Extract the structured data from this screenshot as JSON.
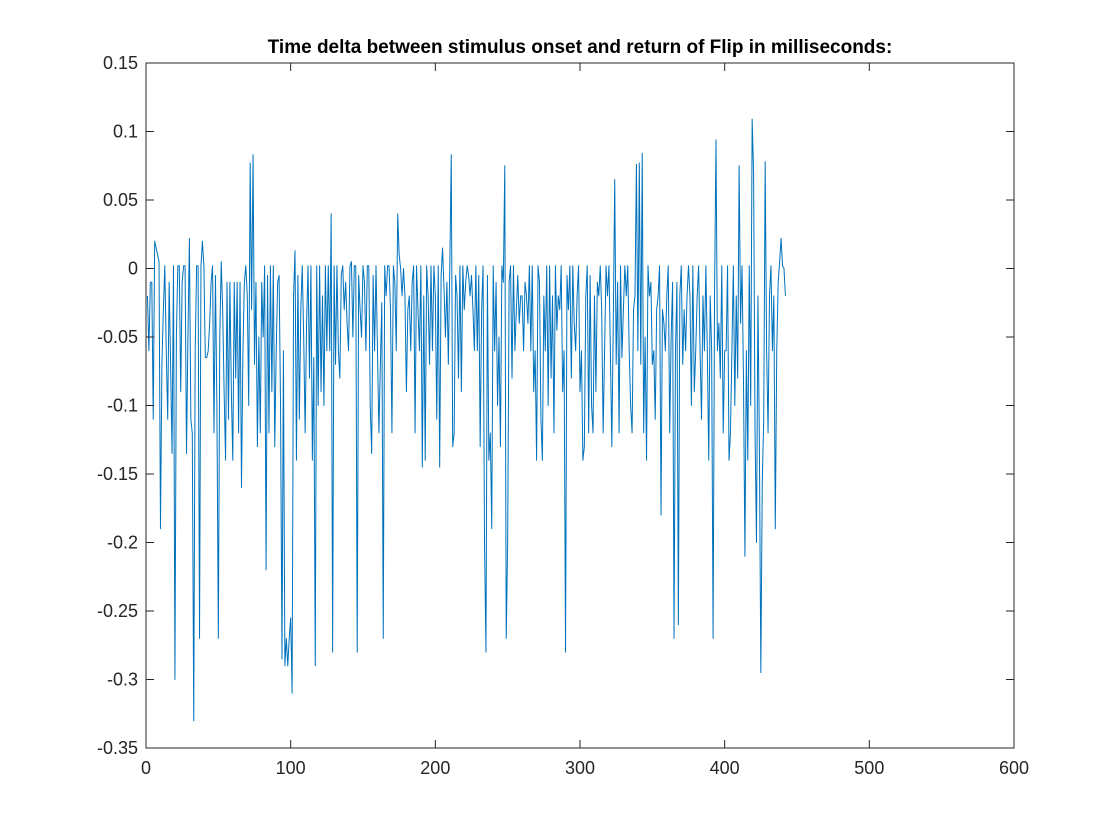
{
  "chart_data": {
    "type": "line",
    "title": "Time delta between stimulus onset and return of Flip in milliseconds:",
    "xlabel": "",
    "ylabel": "",
    "xlim": [
      0,
      600
    ],
    "ylim": [
      -0.35,
      0.15
    ],
    "xticks": [
      0,
      100,
      200,
      300,
      400,
      500,
      600
    ],
    "xtick_labels": [
      "0",
      "100",
      "200",
      "300",
      "400",
      "500",
      "600"
    ],
    "yticks": [
      -0.35,
      -0.3,
      -0.25,
      -0.2,
      -0.15,
      -0.1,
      -0.05,
      0,
      0.05,
      0.1,
      0.15
    ],
    "ytick_labels": [
      "-0.35",
      "-0.3",
      "-0.25",
      "-0.2",
      "-0.15",
      "-0.1",
      "-0.05",
      "0",
      "0.05",
      "0.1",
      "0.15"
    ],
    "grid": false,
    "legend": "none",
    "series": [
      {
        "color": "#0072BD",
        "x_start": 1,
        "x_step": 1,
        "values": [
          -0.02,
          -0.06,
          -0.01,
          -0.01,
          -0.11,
          0.02,
          0.015,
          0.01,
          0.005,
          -0.19,
          -0.07,
          -0.03,
          0.002,
          -0.06,
          -0.11,
          -0.01,
          -0.07,
          -0.135,
          0.002,
          -0.3,
          -0.05,
          0.002,
          0.002,
          -0.09,
          -0.01,
          0.002,
          0.002,
          -0.135,
          -0.05,
          0.022,
          -0.11,
          -0.12,
          -0.33,
          -0.06,
          0.002,
          0.002,
          -0.27,
          0.002,
          0.02,
          0.002,
          -0.065,
          -0.065,
          -0.06,
          -0.04,
          -0.01,
          0.002,
          -0.12,
          -0.005,
          -0.1,
          -0.27,
          -0.05,
          0.005,
          -0.03,
          -0.09,
          -0.14,
          -0.01,
          -0.11,
          -0.01,
          -0.09,
          -0.14,
          -0.01,
          -0.08,
          -0.01,
          -0.12,
          -0.01,
          -0.16,
          -0.06,
          -0.01,
          0.002,
          -0.02,
          -0.1,
          0.077,
          -0.03,
          0.083,
          -0.07,
          -0.01,
          -0.13,
          -0.05,
          -0.12,
          -0.01,
          -0.05,
          0.002,
          -0.22,
          -0.005,
          -0.12,
          0.002,
          -0.09,
          0.002,
          -0.13,
          -0.06,
          -0.01,
          -0.005,
          -0.1,
          -0.285,
          -0.06,
          -0.29,
          -0.27,
          -0.29,
          -0.27,
          -0.255,
          -0.31,
          -0.02,
          0.013,
          -0.14,
          -0.005,
          -0.11,
          -0.03,
          0.002,
          -0.05,
          -0.12,
          -0.04,
          0.002,
          -0.08,
          0.002,
          -0.14,
          -0.065,
          -0.29,
          0.002,
          -0.1,
          0.002,
          -0.09,
          -0.02,
          -0.1,
          0.002,
          -0.06,
          0.002,
          -0.06,
          0.04,
          -0.28,
          0.002,
          -0.07,
          0.002,
          -0.06,
          -0.08,
          -0.005,
          0.002,
          -0.03,
          -0.01,
          -0.04,
          -0.06,
          0.002,
          0.005,
          -0.05,
          0.002,
          0.002,
          -0.28,
          -0.005,
          -0.03,
          -0.05,
          0.002,
          -0.01,
          -0.06,
          0.002,
          0.002,
          -0.1,
          -0.135,
          -0.005,
          -0.06,
          0.002,
          -0.06,
          -0.12,
          -0.07,
          -0.025,
          -0.27,
          0.002,
          -0.02,
          0.002,
          0.002,
          -0.03,
          -0.12,
          0.002,
          -0.01,
          -0.06,
          0.04,
          0.01,
          0.0,
          -0.02,
          0.0,
          -0.02,
          -0.09,
          -0.03,
          -0.02,
          -0.06,
          -0.01,
          0.002,
          -0.12,
          0.002,
          -0.03,
          -0.06,
          0.002,
          -0.145,
          -0.02,
          -0.14,
          0.002,
          -0.02,
          -0.07,
          0.002,
          -0.06,
          0.002,
          -0.02,
          -0.11,
          0.002,
          -0.145,
          -0.005,
          0.015,
          -0.015,
          -0.05,
          -0.01,
          -0.07,
          0.002,
          0.083,
          -0.13,
          -0.12,
          -0.005,
          -0.02,
          -0.08,
          0.002,
          -0.09,
          0.002,
          -0.03,
          -0.01,
          0.002,
          -0.005,
          -0.02,
          -0.005,
          -0.03,
          -0.06,
          0.002,
          -0.06,
          -0.005,
          -0.13,
          -0.03,
          0.002,
          -0.2,
          -0.28,
          -0.005,
          -0.14,
          -0.12,
          -0.19,
          0.002,
          -0.06,
          -0.01,
          -0.1,
          -0.05,
          -0.13,
          0.002,
          -0.01,
          0.075,
          -0.27,
          -0.2,
          -0.01,
          0.002,
          -0.08,
          0.002,
          -0.06,
          -0.03,
          -0.005,
          -0.04,
          -0.02,
          -0.02,
          -0.06,
          -0.01,
          -0.02,
          -0.04,
          0.002,
          -0.06,
          0.002,
          -0.09,
          -0.06,
          -0.14,
          0.002,
          -0.01,
          -0.11,
          -0.14,
          -0.02,
          -0.06,
          0.002,
          -0.1,
          0.002,
          -0.08,
          -0.02,
          -0.12,
          0.002,
          -0.045,
          -0.02,
          -0.03,
          0.002,
          -0.09,
          -0.06,
          -0.28,
          -0.005,
          -0.03,
          0.002,
          -0.08,
          0.002,
          -0.04,
          -0.06,
          -0.02,
          0.002,
          -0.09,
          -0.06,
          -0.14,
          -0.13,
          -0.02,
          0.002,
          -0.12,
          -0.005,
          -0.1,
          -0.12,
          -0.02,
          -0.09,
          -0.01,
          -0.02,
          0.002,
          -0.03,
          -0.12,
          -0.06,
          0.002,
          -0.02,
          0.002,
          -0.06,
          -0.13,
          -0.04,
          0.065,
          -0.07,
          -0.01,
          -0.12,
          0.002,
          -0.065,
          -0.03,
          0.002,
          -0.02,
          0.002,
          -0.06,
          -0.1,
          -0.12,
          -0.03,
          -0.02,
          0.076,
          -0.06,
          0.077,
          -0.07,
          0.084,
          -0.12,
          -0.05,
          -0.14,
          0.002,
          -0.02,
          -0.01,
          -0.07,
          -0.06,
          -0.11,
          -0.03,
          -0.02,
          0.002,
          -0.18,
          -0.03,
          -0.04,
          -0.06,
          -0.02,
          0.002,
          -0.12,
          -0.05,
          -0.01,
          -0.27,
          -0.06,
          -0.01,
          -0.26,
          -0.02,
          0.002,
          -0.07,
          -0.03,
          -0.06,
          -0.02,
          0.002,
          -0.02,
          -0.1,
          0.002,
          -0.09,
          -0.06,
          -0.02,
          0.002,
          -0.06,
          -0.11,
          -0.02,
          -0.06,
          0.002,
          -0.06,
          -0.14,
          -0.02,
          -0.06,
          -0.27,
          -0.02,
          0.094,
          -0.06,
          -0.04,
          -0.08,
          0.002,
          -0.12,
          -0.06,
          -0.06,
          0.002,
          -0.14,
          -0.12,
          -0.06,
          0.002,
          -0.1,
          -0.02,
          -0.08,
          0.075,
          -0.04,
          0.002,
          -0.08,
          -0.21,
          -0.06,
          -0.14,
          0.002,
          -0.1,
          0.109,
          0.07,
          -0.12,
          -0.2,
          -0.02,
          -0.13,
          -0.295,
          -0.155,
          -0.11,
          0.078,
          -0.06,
          -0.12,
          -0.02,
          0.002,
          -0.06,
          -0.02,
          -0.19,
          -0.06,
          -0.01,
          0.005,
          0.022,
          0.002,
          0.0,
          -0.02
        ]
      }
    ]
  }
}
